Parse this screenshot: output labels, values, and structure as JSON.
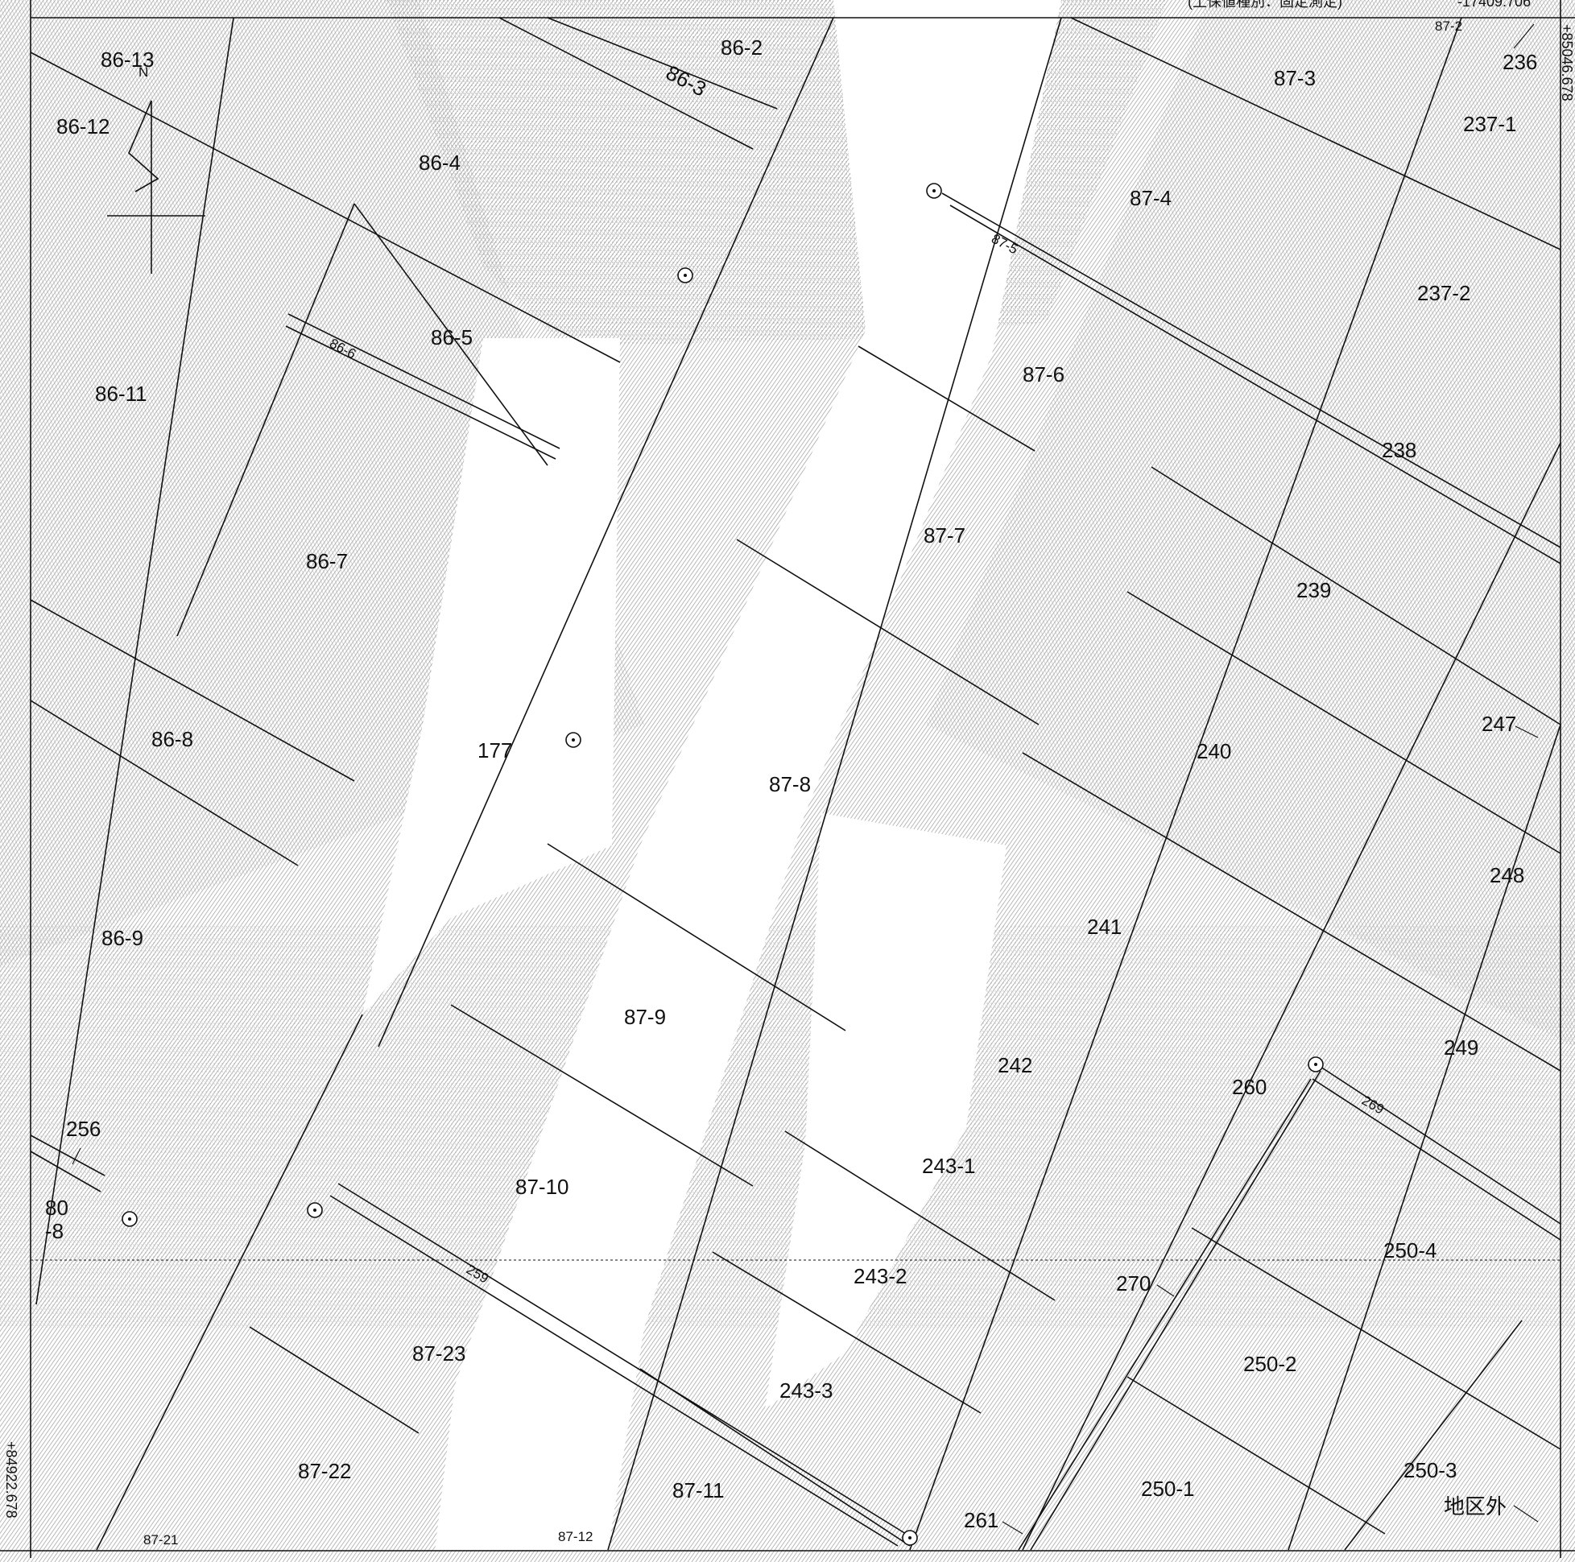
{
  "map": {
    "header_partial": "(土保値種別：固定測定)",
    "header_value": "-17409.706",
    "coord_left": "+84922.678",
    "coord_right_top": "+85046.678",
    "north_label": "N",
    "outside_area": "地区外"
  },
  "parcels": {
    "p86_13": "86-13",
    "p86_12": "86-12",
    "p86_2": "86-2",
    "p86_3": "86-3",
    "p86_4": "86-4",
    "p86_5": "86-5",
    "p86_6": "86-6",
    "p86_7": "86-7",
    "p86_8": "86-8",
    "p86_9": "86-9",
    "p86_11": "86-11",
    "p87_2": "87-2",
    "p87_3": "87-3",
    "p87_4": "87-4",
    "p87_5": "87-5",
    "p87_6": "87-6",
    "p87_7": "87-7",
    "p87_8": "87-8",
    "p87_9": "87-9",
    "p87_10": "87-10",
    "p87_11": "87-11",
    "p87_12": "87-12",
    "p87_21": "87-21",
    "p87_22": "87-22",
    "p87_23": "87-23",
    "p177": "177",
    "p236": "236",
    "p237_1": "237-1",
    "p237_2": "237-2",
    "p238": "238",
    "p239": "239",
    "p240": "240",
    "p241": "241",
    "p242": "242",
    "p243_1": "243-1",
    "p243_2": "243-2",
    "p243_3": "243-3",
    "p247": "247",
    "p248": "248",
    "p249": "249",
    "p250_1": "250-1",
    "p250_2": "250-2",
    "p250_3": "250-3",
    "p250_4": "250-4",
    "p256": "256",
    "p259": "259",
    "p260": "260",
    "p261": "261",
    "p269": "269",
    "p270": "270",
    "p80_a": "80",
    "p80_b": "-8"
  }
}
